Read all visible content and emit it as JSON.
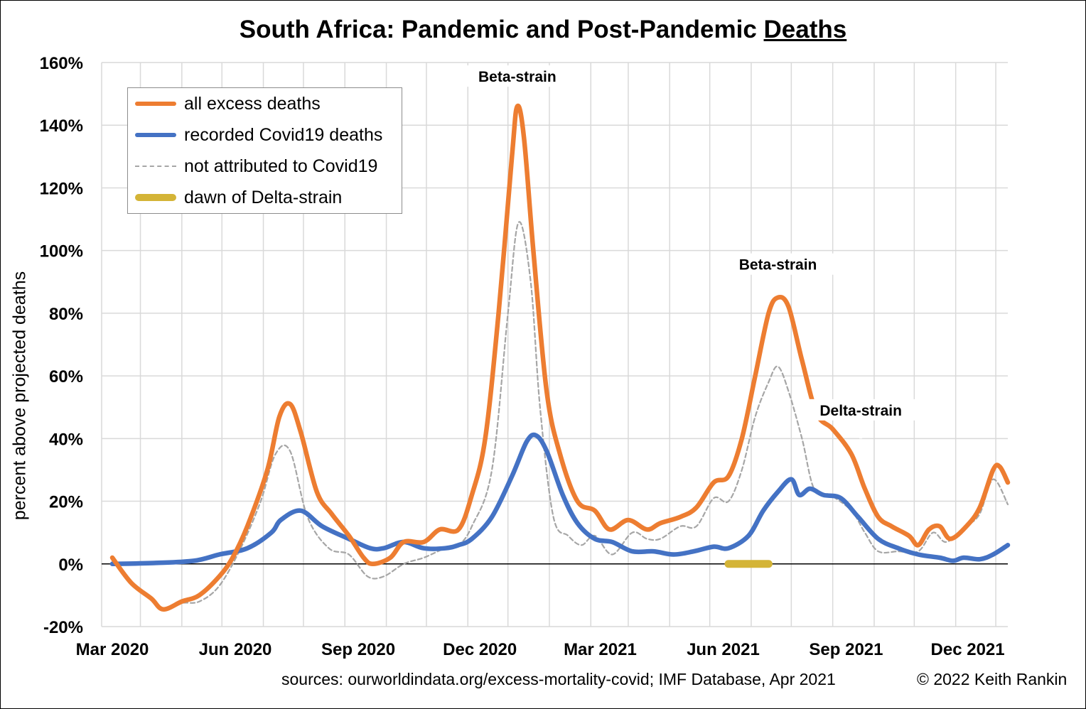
{
  "title": {
    "part1": "South Africa",
    "part2": ": Pandemic and Post-Pandemic ",
    "part3": "Deaths"
  },
  "footer": {
    "sources": "sources: ourworldindata.org/excess-mortality-covid; IMF Database, Apr 2021",
    "copyright": "© 2022 Keith Rankin"
  },
  "colors": {
    "excess": "#ED7D31",
    "covid": "#4472C4",
    "not_attributed": "#A6A6A6",
    "delta": "#D4B437",
    "grid": "#D9D9D9"
  },
  "chart_data": {
    "type": "line",
    "ylabel": "percent above projected deaths",
    "ylim": [
      -20,
      160
    ],
    "yticks": [
      -20,
      0,
      20,
      40,
      60,
      80,
      100,
      120,
      140,
      160
    ],
    "ytick_labels": [
      "-20%",
      "0%",
      "20%",
      "40%",
      "60%",
      "80%",
      "100%",
      "120%",
      "140%",
      "160%"
    ],
    "x_range": [
      "2020-02-22",
      "2021-12-31"
    ],
    "x_tick_labels": [
      {
        "date": "2020-03-01",
        "label": "Mar 2020"
      },
      {
        "date": "2020-06-01",
        "label": "Jun 2020"
      },
      {
        "date": "2020-09-01",
        "label": "Sep 2020"
      },
      {
        "date": "2020-12-01",
        "label": "Dec 2020"
      },
      {
        "date": "2021-03-01",
        "label": "Mar 2021"
      },
      {
        "date": "2021-06-01",
        "label": "Jun 2021"
      },
      {
        "date": "2021-09-01",
        "label": "Sep 2021"
      },
      {
        "date": "2021-12-01",
        "label": "Dec 2021"
      }
    ],
    "x_grid_dates": [
      "2020-02-22",
      "2020-03-22",
      "2020-04-22",
      "2020-05-22",
      "2020-06-22",
      "2020-07-22",
      "2020-08-22",
      "2020-09-22",
      "2020-10-22",
      "2020-11-22",
      "2020-12-22",
      "2021-01-22",
      "2021-02-22",
      "2021-03-22",
      "2021-04-22",
      "2021-05-22",
      "2021-06-22",
      "2021-07-22",
      "2021-08-22",
      "2021-09-22",
      "2021-10-22",
      "2021-11-22",
      "2021-12-22"
    ],
    "grid": true,
    "legend_position": "top-left",
    "series": [
      {
        "name": "all excess deaths",
        "key": "excess",
        "style": "solid-thick",
        "points": [
          [
            "2020-03-01",
            2
          ],
          [
            "2020-03-15",
            -6
          ],
          [
            "2020-03-30",
            -11
          ],
          [
            "2020-04-08",
            -14.5
          ],
          [
            "2020-04-22",
            -12
          ],
          [
            "2020-05-05",
            -10
          ],
          [
            "2020-05-20",
            -4
          ],
          [
            "2020-05-30",
            2
          ],
          [
            "2020-06-10",
            12
          ],
          [
            "2020-06-25",
            30
          ],
          [
            "2020-07-04",
            47
          ],
          [
            "2020-07-12",
            51
          ],
          [
            "2020-07-20",
            42
          ],
          [
            "2020-08-01",
            23
          ],
          [
            "2020-08-12",
            16
          ],
          [
            "2020-08-25",
            9
          ],
          [
            "2020-09-05",
            2
          ],
          [
            "2020-09-12",
            0
          ],
          [
            "2020-09-25",
            2
          ],
          [
            "2020-10-05",
            7
          ],
          [
            "2020-10-20",
            7
          ],
          [
            "2020-11-01",
            11
          ],
          [
            "2020-11-15",
            11
          ],
          [
            "2020-11-25",
            22
          ],
          [
            "2020-12-05",
            40
          ],
          [
            "2020-12-15",
            80
          ],
          [
            "2020-12-25",
            130
          ],
          [
            "2020-12-29",
            146
          ],
          [
            "2021-01-03",
            136
          ],
          [
            "2021-01-10",
            100
          ],
          [
            "2021-01-20",
            55
          ],
          [
            "2021-01-30",
            35
          ],
          [
            "2021-02-12",
            20
          ],
          [
            "2021-02-25",
            17
          ],
          [
            "2021-03-08",
            11
          ],
          [
            "2021-03-22",
            14
          ],
          [
            "2021-04-05",
            11
          ],
          [
            "2021-04-15",
            13
          ],
          [
            "2021-04-30",
            15
          ],
          [
            "2021-05-12",
            18
          ],
          [
            "2021-05-25",
            26
          ],
          [
            "2021-06-05",
            28
          ],
          [
            "2021-06-15",
            40
          ],
          [
            "2021-06-25",
            60
          ],
          [
            "2021-07-05",
            80
          ],
          [
            "2021-07-12",
            85
          ],
          [
            "2021-07-20",
            82
          ],
          [
            "2021-07-30",
            65
          ],
          [
            "2021-08-10",
            48
          ],
          [
            "2021-08-22",
            43
          ],
          [
            "2021-09-05",
            35
          ],
          [
            "2021-09-15",
            24
          ],
          [
            "2021-09-25",
            15
          ],
          [
            "2021-10-05",
            12
          ],
          [
            "2021-10-18",
            9
          ],
          [
            "2021-10-25",
            6
          ],
          [
            "2021-11-02",
            11
          ],
          [
            "2021-11-10",
            12
          ],
          [
            "2021-11-18",
            8
          ],
          [
            "2021-11-30",
            12
          ],
          [
            "2021-12-10",
            18
          ],
          [
            "2021-12-20",
            30
          ],
          [
            "2021-12-25",
            31
          ],
          [
            "2021-12-31",
            26
          ]
        ]
      },
      {
        "name": "recorded Covid19 deaths",
        "key": "covid",
        "style": "solid-thick",
        "points": [
          [
            "2020-03-01",
            0
          ],
          [
            "2020-04-01",
            0.3
          ],
          [
            "2020-05-01",
            1
          ],
          [
            "2020-05-20",
            3
          ],
          [
            "2020-06-10",
            5
          ],
          [
            "2020-06-28",
            10
          ],
          [
            "2020-07-05",
            14
          ],
          [
            "2020-07-20",
            17
          ],
          [
            "2020-08-05",
            12
          ],
          [
            "2020-08-25",
            8
          ],
          [
            "2020-09-10",
            5
          ],
          [
            "2020-09-20",
            5
          ],
          [
            "2020-10-05",
            7
          ],
          [
            "2020-10-20",
            5
          ],
          [
            "2020-11-05",
            5
          ],
          [
            "2020-11-15",
            6
          ],
          [
            "2020-11-25",
            8
          ],
          [
            "2020-12-10",
            15
          ],
          [
            "2020-12-25",
            28
          ],
          [
            "2021-01-05",
            39
          ],
          [
            "2021-01-12",
            41
          ],
          [
            "2021-01-20",
            36
          ],
          [
            "2021-02-01",
            22
          ],
          [
            "2021-02-12",
            13
          ],
          [
            "2021-02-25",
            8
          ],
          [
            "2021-03-10",
            7
          ],
          [
            "2021-03-25",
            4
          ],
          [
            "2021-04-10",
            4
          ],
          [
            "2021-04-25",
            3
          ],
          [
            "2021-05-10",
            4
          ],
          [
            "2021-05-25",
            5.5
          ],
          [
            "2021-06-05",
            5
          ],
          [
            "2021-06-20",
            9
          ],
          [
            "2021-07-01",
            17
          ],
          [
            "2021-07-12",
            23
          ],
          [
            "2021-07-22",
            27
          ],
          [
            "2021-07-28",
            22
          ],
          [
            "2021-08-05",
            24
          ],
          [
            "2021-08-15",
            22
          ],
          [
            "2021-08-28",
            21
          ],
          [
            "2021-09-10",
            15
          ],
          [
            "2021-09-25",
            8
          ],
          [
            "2021-10-10",
            5
          ],
          [
            "2021-10-25",
            3
          ],
          [
            "2021-11-10",
            2
          ],
          [
            "2021-11-20",
            1
          ],
          [
            "2021-11-28",
            2
          ],
          [
            "2021-12-10",
            1.5
          ],
          [
            "2021-12-20",
            3
          ],
          [
            "2021-12-31",
            6
          ]
        ]
      },
      {
        "name": "not attributed to Covid19",
        "key": "not_attributed",
        "style": "dashed",
        "points": [
          [
            "2020-03-01",
            1
          ],
          [
            "2020-03-15",
            -6
          ],
          [
            "2020-03-30",
            -11
          ],
          [
            "2020-04-08",
            -14.5
          ],
          [
            "2020-04-22",
            -12.5
          ],
          [
            "2020-05-05",
            -12
          ],
          [
            "2020-05-20",
            -7
          ],
          [
            "2020-06-05",
            5
          ],
          [
            "2020-06-20",
            20
          ],
          [
            "2020-07-01",
            35
          ],
          [
            "2020-07-12",
            36
          ],
          [
            "2020-07-25",
            15
          ],
          [
            "2020-08-10",
            5
          ],
          [
            "2020-08-25",
            3
          ],
          [
            "2020-09-08",
            -4
          ],
          [
            "2020-09-20",
            -4
          ],
          [
            "2020-10-05",
            0
          ],
          [
            "2020-10-20",
            2
          ],
          [
            "2020-11-05",
            5
          ],
          [
            "2020-11-15",
            6
          ],
          [
            "2020-11-25",
            12
          ],
          [
            "2020-12-10",
            30
          ],
          [
            "2020-12-22",
            80
          ],
          [
            "2020-12-30",
            109
          ],
          [
            "2021-01-08",
            90
          ],
          [
            "2021-01-15",
            50
          ],
          [
            "2021-01-25",
            15
          ],
          [
            "2021-02-05",
            9
          ],
          [
            "2021-02-15",
            6
          ],
          [
            "2021-02-25",
            9
          ],
          [
            "2021-03-10",
            3
          ],
          [
            "2021-03-25",
            10
          ],
          [
            "2021-04-05",
            8
          ],
          [
            "2021-04-15",
            8
          ],
          [
            "2021-04-30",
            12
          ],
          [
            "2021-05-12",
            12
          ],
          [
            "2021-05-25",
            21
          ],
          [
            "2021-06-05",
            20
          ],
          [
            "2021-06-15",
            30
          ],
          [
            "2021-06-25",
            47
          ],
          [
            "2021-07-05",
            58
          ],
          [
            "2021-07-12",
            63
          ],
          [
            "2021-07-20",
            55
          ],
          [
            "2021-07-30",
            40
          ],
          [
            "2021-08-08",
            24
          ],
          [
            "2021-08-20",
            22
          ],
          [
            "2021-09-05",
            17
          ],
          [
            "2021-09-15",
            10
          ],
          [
            "2021-09-25",
            4
          ],
          [
            "2021-10-10",
            4
          ],
          [
            "2021-10-25",
            4
          ],
          [
            "2021-11-05",
            10
          ],
          [
            "2021-11-15",
            7
          ],
          [
            "2021-11-30",
            12
          ],
          [
            "2021-12-10",
            16
          ],
          [
            "2021-12-20",
            27
          ],
          [
            "2021-12-31",
            19
          ]
        ]
      },
      {
        "name": "dawn of Delta-strain",
        "key": "delta",
        "style": "band",
        "points": [
          [
            "2021-06-05",
            0
          ],
          [
            "2021-07-05",
            0
          ]
        ]
      }
    ],
    "annotations": [
      {
        "text": "Beta-strain",
        "date": "2020-12-29",
        "value": 155,
        "line_to_value": 147
      },
      {
        "text": "Beta-strain",
        "date": "2021-07-12",
        "value": 95,
        "line_to_value": 87
      },
      {
        "text": "Delta-strain",
        "date": "2021-09-12",
        "value": 48.5,
        "line_to_value": 40
      }
    ]
  }
}
